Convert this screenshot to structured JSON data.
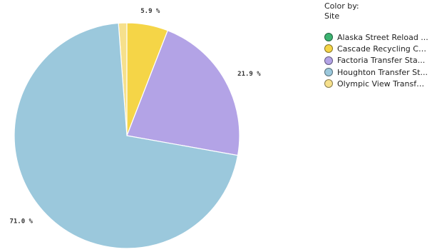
{
  "chart_data": {
    "type": "pie",
    "legend_title": "Color by:",
    "legend_subtitle": "Site",
    "legend_position": "top-right",
    "slices": [
      {
        "name": "Alaska Street Reload ...",
        "value": 0.0,
        "label": "",
        "color": "#3cb371"
      },
      {
        "name": "Cascade Recycling Ce...",
        "value": 5.9,
        "label": "5.9 %",
        "color": "#f5d547"
      },
      {
        "name": "Factoria Transfer Sta...",
        "value": 21.9,
        "label": "21.9 %",
        "color": "#b3a3e6"
      },
      {
        "name": "Houghton Transfer St...",
        "value": 71.0,
        "label": "71.0 %",
        "color": "#9bc8dc"
      },
      {
        "name": "Olympic View Transfe...",
        "value": 1.2,
        "label": "",
        "color": "#f6e08c"
      }
    ]
  }
}
